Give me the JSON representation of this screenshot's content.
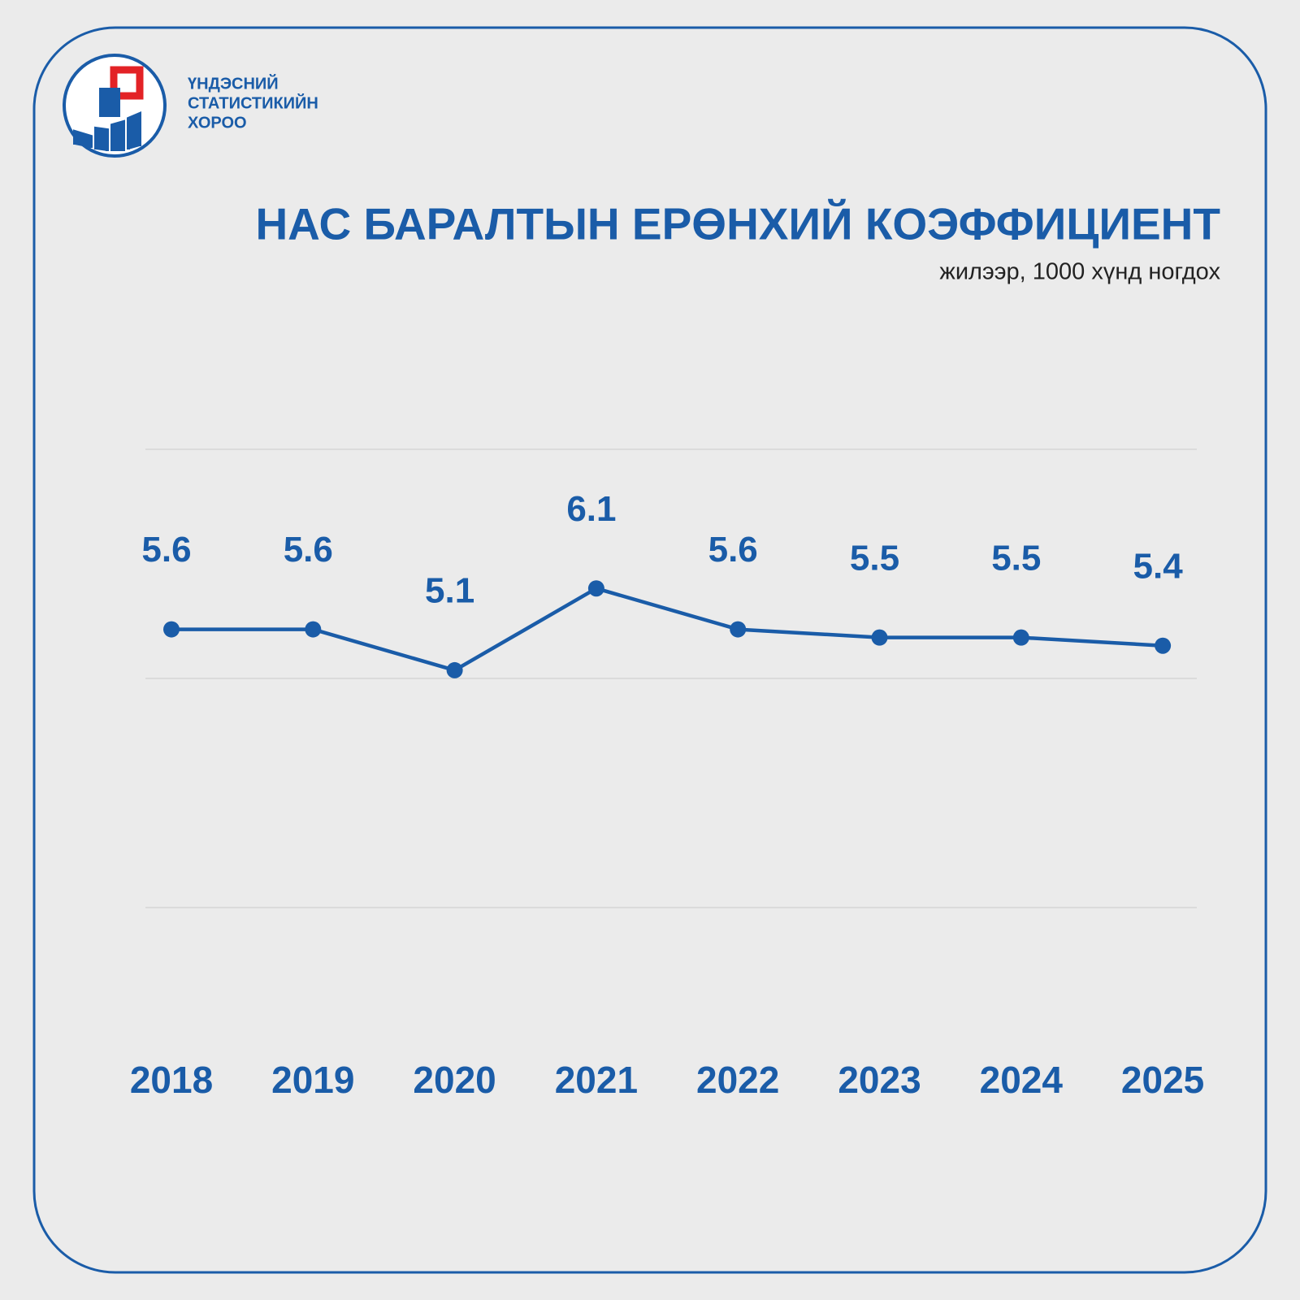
{
  "logo": {
    "lines": [
      "ҮНДЭСНИЙ",
      "СТАТИСТИКИЙН",
      "ХОРОО"
    ]
  },
  "chart_data": {
    "type": "line",
    "title": "НАС БАРАЛТЫН ЕРӨНХИЙ КОЭФФИЦИЕНТ",
    "subtitle": "жилээр, 1000 хүнд ногдох",
    "categories": [
      "2018",
      "2019",
      "2020",
      "2021",
      "2022",
      "2023",
      "2024",
      "2025"
    ],
    "series": [
      {
        "name": "Нас баралтын ерөнхий коэффициент",
        "color": "#1a5ca8",
        "values": [
          5.6,
          5.6,
          5.1,
          6.1,
          5.6,
          5.5,
          5.5,
          5.4
        ]
      }
    ],
    "ylim": [
      2.2,
      7.8
    ],
    "grid": true
  }
}
